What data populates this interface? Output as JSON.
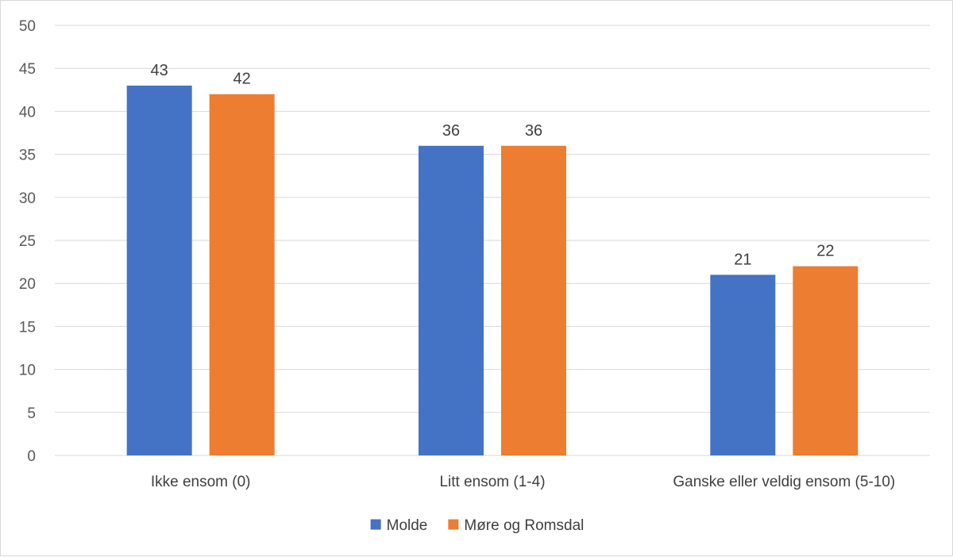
{
  "chart_data": {
    "type": "bar",
    "categories": [
      "Ikke ensom (0)",
      "Litt ensom (1-4)",
      "Ganske eller veldig ensom (5-10)"
    ],
    "series": [
      {
        "name": "Molde",
        "values": [
          43,
          36,
          21
        ],
        "color": "#4472c4"
      },
      {
        "name": "Møre og Romsdal",
        "values": [
          42,
          36,
          22
        ],
        "color": "#ed7d31"
      }
    ],
    "ylim": [
      0,
      50
    ],
    "y_ticks": [
      0,
      5,
      10,
      15,
      20,
      25,
      30,
      35,
      40,
      45,
      50
    ],
    "grid": true,
    "legend": "bottom-center",
    "data_labels": true,
    "gridline_color": "#d9d9d9"
  }
}
